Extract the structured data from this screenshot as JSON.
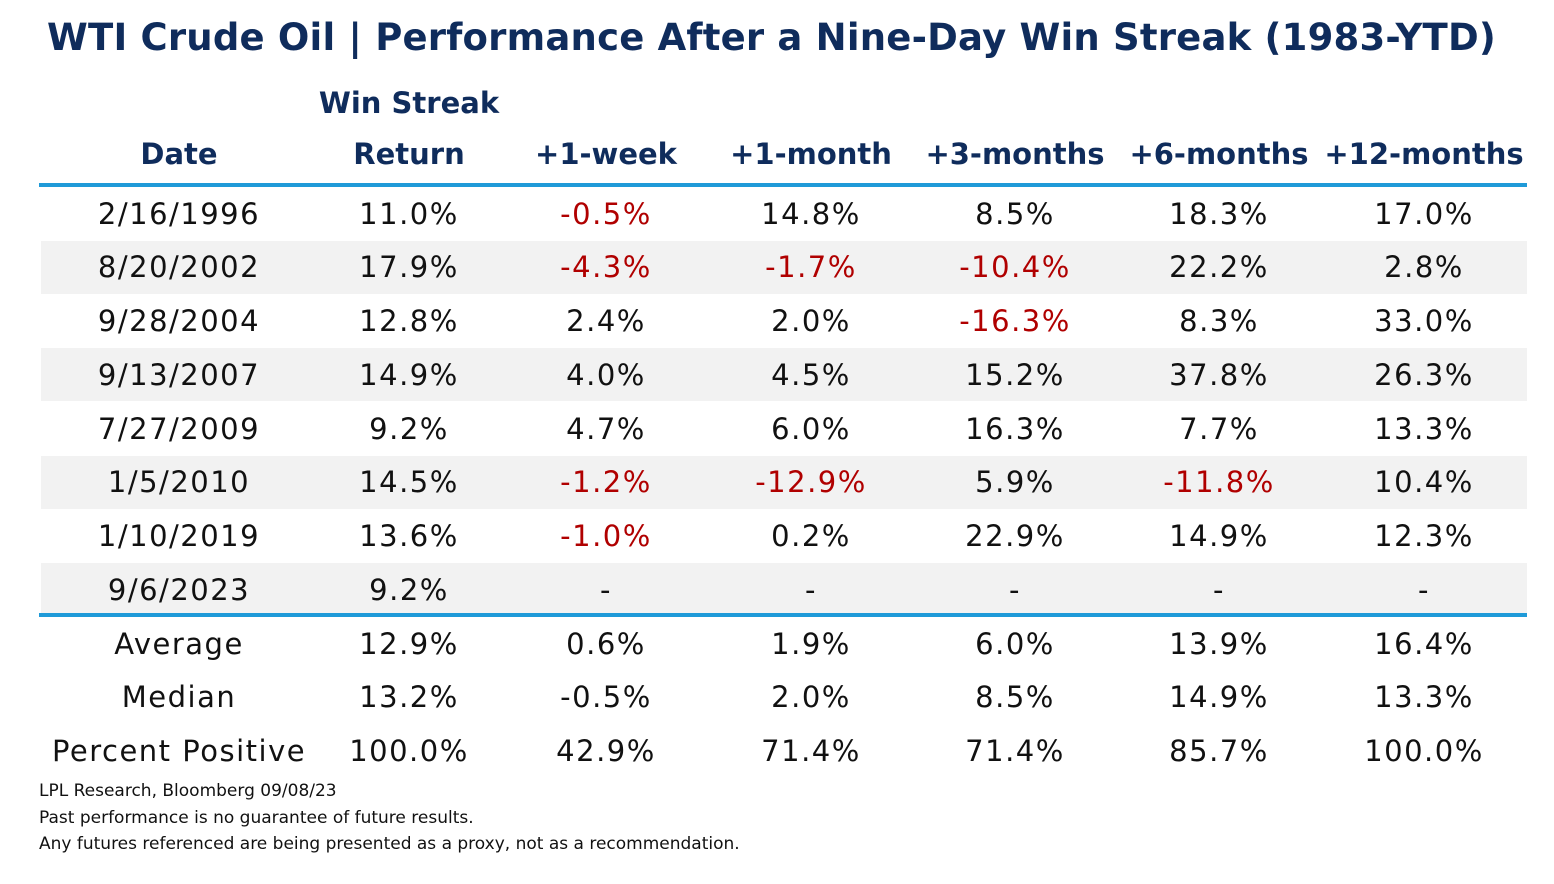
{
  "title": "WTI Crude Oil | Performance After a Nine-Day Win Streak (1983-YTD)",
  "chart_data": {
    "type": "table",
    "columns": [
      {
        "line1": "",
        "line2": "Date"
      },
      {
        "line1": "Win Streak",
        "line2": "Return"
      },
      {
        "line1": "",
        "line2": "+1-week"
      },
      {
        "line1": "",
        "line2": "+1-month"
      },
      {
        "line1": "",
        "line2": "+3-months"
      },
      {
        "line1": "",
        "line2": "+6-months"
      },
      {
        "line1": "",
        "line2": "+12-months"
      }
    ],
    "rows": [
      [
        "2/16/1996",
        "11.0%",
        "-0.5%",
        "14.8%",
        "8.5%",
        "18.3%",
        "17.0%"
      ],
      [
        "8/20/2002",
        "17.9%",
        "-4.3%",
        "-1.7%",
        "-10.4%",
        "22.2%",
        "2.8%"
      ],
      [
        "9/28/2004",
        "12.8%",
        "2.4%",
        "2.0%",
        "-16.3%",
        "8.3%",
        "33.0%"
      ],
      [
        "9/13/2007",
        "14.9%",
        "4.0%",
        "4.5%",
        "15.2%",
        "37.8%",
        "26.3%"
      ],
      [
        "7/27/2009",
        "9.2%",
        "4.7%",
        "6.0%",
        "16.3%",
        "7.7%",
        "13.3%"
      ],
      [
        "1/5/2010",
        "14.5%",
        "-1.2%",
        "-12.9%",
        "5.9%",
        "-11.8%",
        "10.4%"
      ],
      [
        "1/10/2019",
        "13.6%",
        "-1.0%",
        "0.2%",
        "22.9%",
        "14.9%",
        "12.3%"
      ],
      [
        "9/6/2023",
        "9.2%",
        "-",
        "-",
        "-",
        "-",
        "-"
      ]
    ],
    "summary": [
      [
        "Average",
        "12.9%",
        "0.6%",
        "1.9%",
        "6.0%",
        "13.9%",
        "16.4%"
      ],
      [
        "Median",
        "13.2%",
        "-0.5%",
        "2.0%",
        "8.5%",
        "14.9%",
        "13.3%"
      ],
      [
        "Percent Positive",
        "100.0%",
        "42.9%",
        "71.4%",
        "71.4%",
        "85.7%",
        "100.0%"
      ]
    ],
    "colors": {
      "title": "#0f2c5c",
      "header": "#0f2c5c",
      "negative": "#b00000",
      "rule": "#1f9ad8",
      "row_shade": "#f2f2f2"
    }
  },
  "footnotes": [
    "LPL Research, Bloomberg 09/08/23",
    "Past performance is no guarantee of future results.",
    "Any futures referenced are being presented as a proxy, not as a recommendation."
  ]
}
